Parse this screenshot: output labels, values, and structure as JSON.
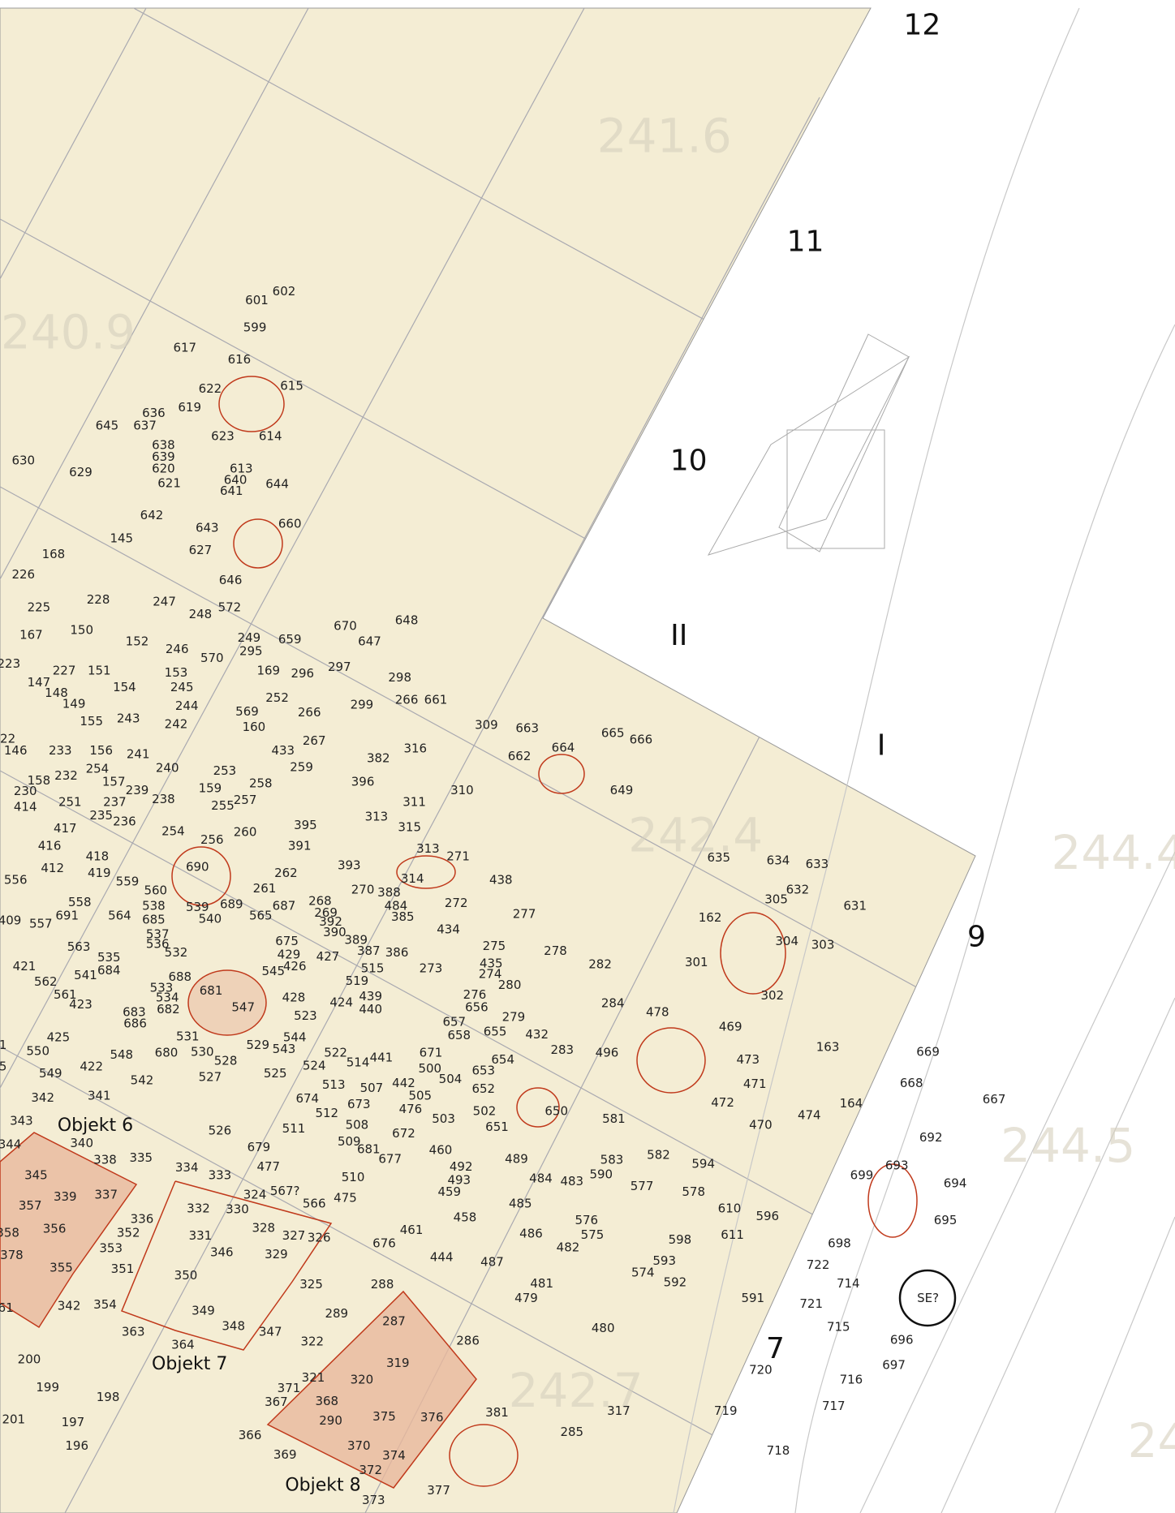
{
  "trenches": [
    "12",
    "11",
    "10",
    "II",
    "I",
    "9",
    "7"
  ],
  "objects": [
    "Objekt 6",
    "Objekt 7",
    "Objekt 8"
  ],
  "elevations": [
    "241.6",
    "240.9",
    "242.4",
    "244.4",
    "244.5",
    "242.7",
    "24"
  ],
  "note": "SE?",
  "features": [
    "601",
    "602",
    "599",
    "617",
    "616",
    "615",
    "622",
    "619",
    "636",
    "637",
    "645",
    "614",
    "623",
    "638",
    "639",
    "620",
    "613",
    "640",
    "621",
    "641",
    "644",
    "630",
    "629",
    "642",
    "643",
    "660",
    "627",
    "145",
    "168",
    "226",
    "646",
    "228",
    "247",
    "225",
    "572",
    "248",
    "648",
    "670",
    "167",
    "150",
    "249",
    "659",
    "647",
    "152",
    "246",
    "295",
    "570",
    "223",
    "227",
    "151",
    "153",
    "169",
    "296",
    "297",
    "298",
    "147",
    "148",
    "154",
    "245",
    "252",
    "266",
    "661",
    "149",
    "244",
    "299",
    "266",
    "569",
    "155",
    "243",
    "242",
    "160",
    "309",
    "663",
    "665",
    "666",
    "22",
    "146",
    "233",
    "156",
    "241",
    "433",
    "267",
    "316",
    "662",
    "382",
    "664",
    "240",
    "253",
    "259",
    "158",
    "232",
    "254",
    "157",
    "239",
    "258",
    "396",
    "649",
    "230",
    "251",
    "237",
    "238",
    "159",
    "257",
    "255",
    "311",
    "310",
    "414",
    "235",
    "236",
    "313",
    "395",
    "315",
    "417",
    "254",
    "260",
    "256",
    "416",
    "391",
    "313",
    "271",
    "635",
    "634",
    "633",
    "418",
    "690",
    "393",
    "262",
    "314",
    "412",
    "419",
    "559",
    "556",
    "261",
    "438",
    "632",
    "560",
    "270",
    "388",
    "305",
    "631",
    "558",
    "539",
    "689",
    "687",
    "268",
    "484",
    "272",
    "277",
    "162",
    "691",
    "564",
    "538",
    "269",
    "385",
    "409",
    "557",
    "685",
    "540",
    "565",
    "392",
    "304",
    "303",
    "434",
    "537",
    "390",
    "389",
    "675",
    "536",
    "275",
    "278",
    "563",
    "532",
    "429",
    "387",
    "386",
    "435",
    "301",
    "282",
    "421",
    "684",
    "541",
    "427",
    "426",
    "515",
    "273",
    "274",
    "545",
    "535",
    "688",
    "562",
    "533",
    "519",
    "280",
    "302",
    "561",
    "534",
    "681",
    "439",
    "276",
    "428",
    "423",
    "682",
    "547",
    "424",
    "440",
    "656",
    "284",
    "478",
    "683",
    "279",
    "523",
    "657",
    "686",
    "469",
    "658",
    "655",
    "432",
    "425",
    "531",
    "544",
    "163",
    "1",
    "550",
    "680",
    "530",
    "543",
    "529",
    "522",
    "671",
    "283",
    "496",
    "548",
    "528",
    "514",
    "441",
    "654",
    "473",
    "5",
    "422",
    "524",
    "500",
    "653",
    "549",
    "527",
    "525",
    "542",
    "504",
    "442",
    "513",
    "507",
    "652",
    "471",
    "164",
    "342",
    "341",
    "674",
    "505",
    "673",
    "472",
    "474",
    "512",
    "476",
    "502",
    "650",
    "581",
    "470",
    "343",
    "503",
    "508",
    "511",
    "651",
    "526",
    "672",
    "679",
    "509",
    "344",
    "340",
    "681",
    "460",
    "582",
    "583",
    "335",
    "338",
    "477",
    "677",
    "489",
    "594",
    "492",
    "590",
    "345",
    "334",
    "333",
    "510",
    "493",
    "484",
    "483",
    "577",
    "578",
    "337",
    "339",
    "324",
    "567?",
    "475",
    "459",
    "485",
    "357",
    "566",
    "610",
    "332",
    "330",
    "596",
    "336",
    "458",
    "576",
    "356",
    "358",
    "352",
    "331",
    "328",
    "327",
    "326",
    "461",
    "486",
    "575",
    "611",
    "598",
    "676",
    "353",
    "346",
    "329",
    "482",
    "378",
    "444",
    "487",
    "593",
    "355",
    "351",
    "574",
    "350",
    "325",
    "592",
    "591",
    "288",
    "481",
    "61",
    "342",
    "354",
    "479",
    "349",
    "289",
    "287",
    "480",
    "348",
    "363",
    "347",
    "364",
    "322",
    "286",
    "319",
    "200",
    "320",
    "321",
    "199",
    "371",
    "198",
    "368",
    "367",
    "381",
    "317",
    "201",
    "197",
    "290",
    "375",
    "376",
    "366",
    "285",
    "370",
    "196",
    "369",
    "374",
    "372",
    "377",
    "373",
    "669",
    "668",
    "667",
    "692",
    "693",
    "699",
    "694",
    "695",
    "698",
    "722",
    "714",
    "721",
    "715",
    "696",
    "697",
    "720",
    "716",
    "717",
    "719",
    "718"
  ]
}
